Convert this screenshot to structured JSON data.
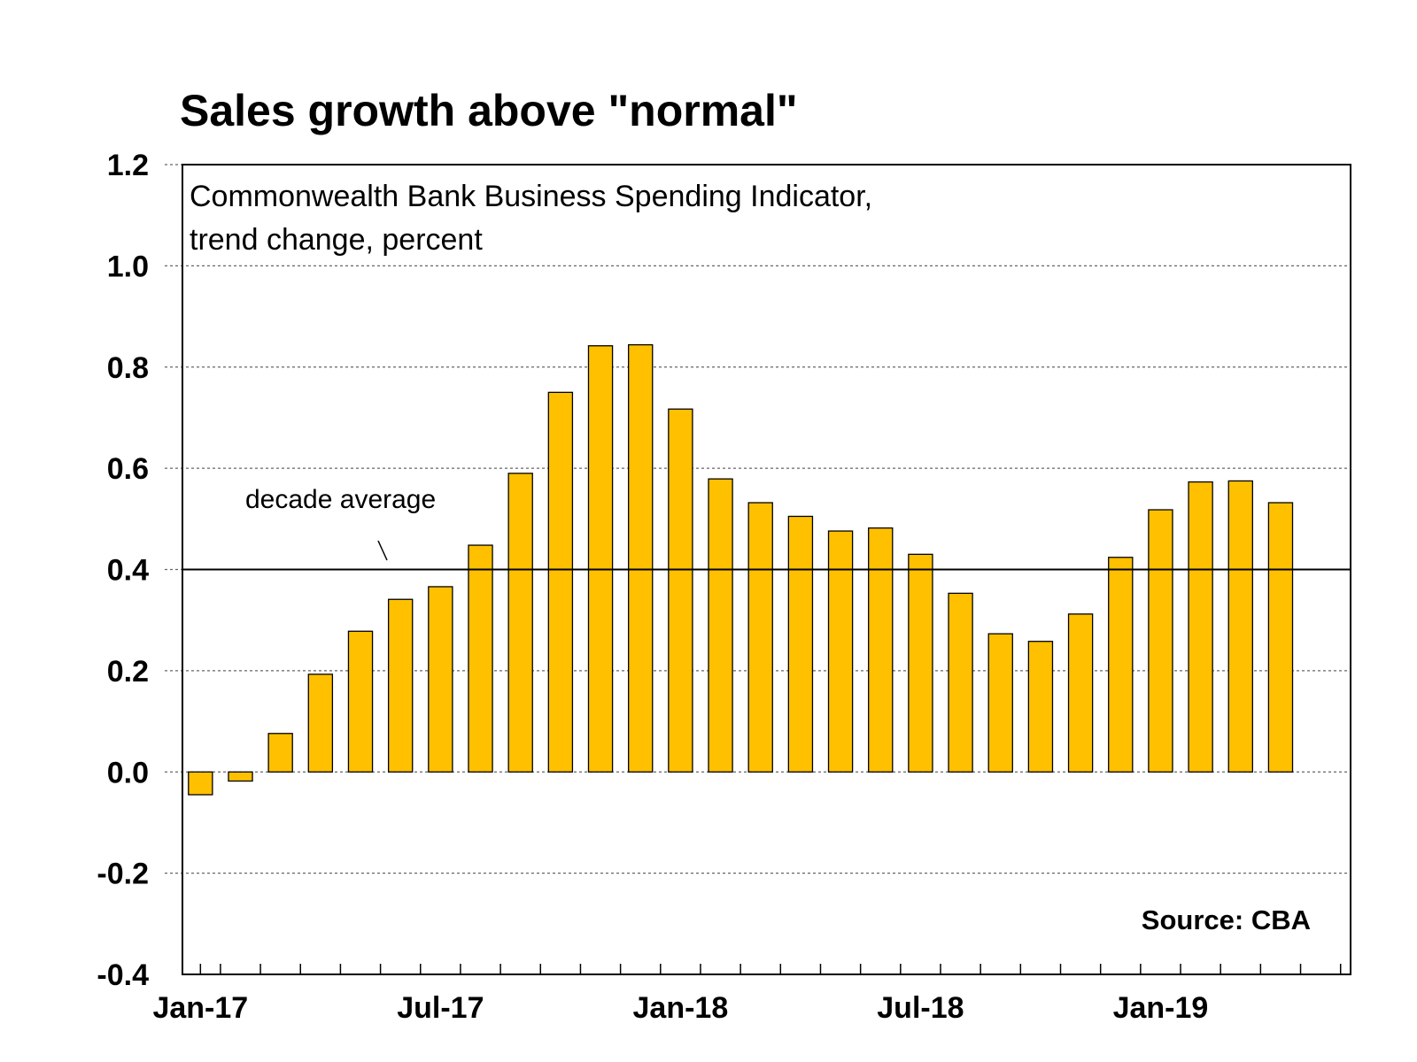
{
  "chart_data": {
    "type": "bar",
    "title": "Sales growth above \"normal\"",
    "subtitle_lines": [
      "Commonwealth Bank Business Spending Indicator,",
      "trend change, percent"
    ],
    "categories": [
      "Jan-17",
      "Feb-17",
      "Mar-17",
      "Apr-17",
      "May-17",
      "Jun-17",
      "Jul-17",
      "Aug-17",
      "Sep-17",
      "Oct-17",
      "Nov-17",
      "Dec-17",
      "Jan-18",
      "Feb-18",
      "Mar-18",
      "Apr-18",
      "May-18",
      "Jun-18",
      "Jul-18",
      "Aug-18",
      "Sep-18",
      "Oct-18",
      "Nov-18",
      "Dec-18",
      "Jan-19",
      "Feb-19",
      "Mar-19",
      "Apr-19"
    ],
    "values": [
      -0.045,
      -0.018,
      0.076,
      0.193,
      0.278,
      0.341,
      0.366,
      0.448,
      0.59,
      0.75,
      0.842,
      0.844,
      0.717,
      0.579,
      0.532,
      0.505,
      0.476,
      0.482,
      0.43,
      0.353,
      0.273,
      0.258,
      0.312,
      0.424,
      0.518,
      0.573,
      0.575,
      0.532
    ],
    "x_tick_labels": [
      {
        "index": 0,
        "label": "Jan-17"
      },
      {
        "index": 6,
        "label": "Jul-17"
      },
      {
        "index": 12,
        "label": "Jan-18"
      },
      {
        "index": 18,
        "label": "Jul-18"
      },
      {
        "index": 24,
        "label": "Jan-19"
      }
    ],
    "y_ticks": [
      "1.2",
      "1.0",
      "0.8",
      "0.6",
      "0.4",
      "0.2",
      "0.0",
      "-0.2",
      "-0.4"
    ],
    "ylim": [
      -0.4,
      1.2
    ],
    "reference_line": {
      "value": 0.4,
      "label": "decade average"
    },
    "source": "Source: CBA",
    "grid": "horizontal dotted",
    "legend": "none",
    "colors": {
      "bar": "#FFC000",
      "bar_edge": "#000000",
      "grid": "#666666",
      "axis": "#000000"
    }
  }
}
